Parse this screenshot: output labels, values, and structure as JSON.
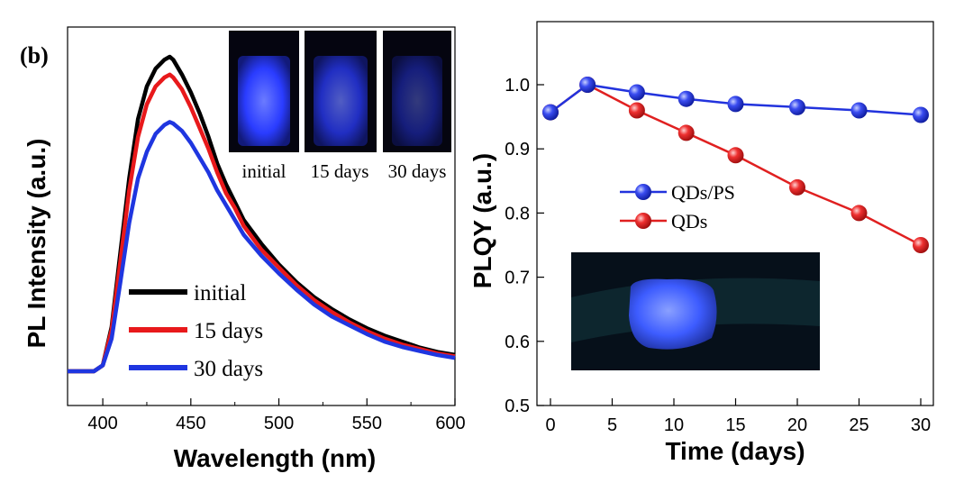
{
  "panel_label": "(b)",
  "chart_data": [
    {
      "type": "line",
      "xlabel": "Wavelength (nm)",
      "ylabel": "PL Intensity (a.u.)",
      "xlim": [
        380,
        600
      ],
      "ylim": [
        0,
        1.1
      ],
      "x_ticks": [
        "400",
        "450",
        "500",
        "550",
        "600"
      ],
      "y_ticks": [],
      "legend": {
        "position": "center-left",
        "entries": [
          "initial",
          "15 days",
          "30 days"
        ]
      },
      "x": [
        380,
        395,
        400,
        405,
        410,
        415,
        420,
        425,
        430,
        435,
        438,
        440,
        445,
        450,
        455,
        460,
        465,
        470,
        475,
        480,
        490,
        500,
        510,
        520,
        530,
        540,
        550,
        560,
        570,
        580,
        590,
        600
      ],
      "series": [
        {
          "name": "initial",
          "color": "#000000",
          "values": [
            0.0,
            0.0,
            0.02,
            0.15,
            0.4,
            0.65,
            0.85,
            0.96,
            1.02,
            1.05,
            1.06,
            1.05,
            1.0,
            0.94,
            0.87,
            0.79,
            0.7,
            0.63,
            0.57,
            0.51,
            0.43,
            0.36,
            0.3,
            0.25,
            0.21,
            0.175,
            0.145,
            0.12,
            0.1,
            0.08,
            0.065,
            0.055
          ]
        },
        {
          "name": "15 days",
          "color": "#e8191b",
          "values": [
            0.0,
            0.0,
            0.02,
            0.14,
            0.37,
            0.61,
            0.79,
            0.9,
            0.96,
            0.99,
            1.0,
            0.99,
            0.95,
            0.89,
            0.82,
            0.75,
            0.67,
            0.6,
            0.55,
            0.49,
            0.41,
            0.35,
            0.29,
            0.24,
            0.2,
            0.165,
            0.135,
            0.11,
            0.09,
            0.075,
            0.06,
            0.05
          ]
        },
        {
          "name": "30 days",
          "color": "#1f36e0",
          "values": [
            0.0,
            0.0,
            0.02,
            0.11,
            0.3,
            0.5,
            0.65,
            0.74,
            0.8,
            0.83,
            0.84,
            0.835,
            0.81,
            0.77,
            0.72,
            0.67,
            0.61,
            0.56,
            0.51,
            0.46,
            0.39,
            0.33,
            0.275,
            0.225,
            0.185,
            0.155,
            0.125,
            0.1,
            0.082,
            0.068,
            0.055,
            0.045
          ]
        }
      ],
      "inset": {
        "labels": [
          "initial",
          "15 days",
          "30 days"
        ],
        "glow_levels": [
          1.0,
          0.75,
          0.45
        ]
      }
    },
    {
      "type": "line",
      "xlabel": "Time (days)",
      "ylabel": "PLQY (a.u.)",
      "xlim": [
        -1,
        31
      ],
      "ylim": [
        0.5,
        1.08
      ],
      "x_ticks": [
        "0",
        "5",
        "10",
        "15",
        "20",
        "25",
        "30"
      ],
      "y_ticks": [
        "0.5",
        "0.6",
        "0.7",
        "0.8",
        "0.9",
        "1.0"
      ],
      "legend": {
        "position": "center-left",
        "entries": [
          "QDs/PS",
          "QDs"
        ]
      },
      "series": [
        {
          "name": "QDs/PS",
          "color": "#2233dd",
          "x": [
            0,
            3,
            7,
            11,
            15,
            20,
            25,
            30
          ],
          "values": [
            0.957,
            1.0,
            0.988,
            0.978,
            0.97,
            0.965,
            0.96,
            0.953
          ]
        },
        {
          "name": "QDs",
          "color": "#e02020",
          "x": [
            0,
            3,
            7,
            11,
            15,
            20,
            25,
            30
          ],
          "values": [
            0.957,
            1.0,
            0.96,
            0.925,
            0.89,
            0.84,
            0.8,
            0.75
          ]
        }
      ]
    }
  ]
}
